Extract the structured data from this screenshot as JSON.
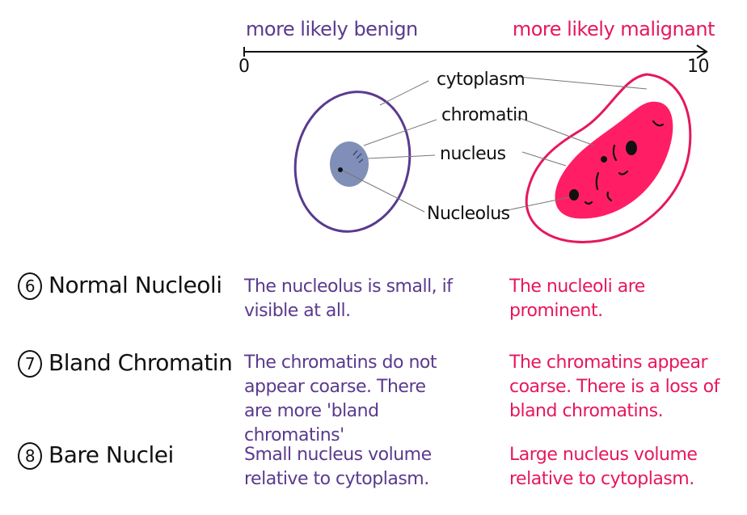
{
  "scale": {
    "left_label": "more likely benign",
    "right_label": "more likely malignant",
    "min": "0",
    "max": "10"
  },
  "parts": {
    "cytoplasm": "cytoplasm",
    "chromatin": "chromatin",
    "nucleus": "nucleus",
    "nucleolus": "Nucleolus"
  },
  "criteria": [
    {
      "number": "6",
      "name": "Normal Nucleoli",
      "benign": "The nucleolus is small, if visible at all.",
      "malignant": "The nucleoli are prominent."
    },
    {
      "number": "7",
      "name": "Bland Chromatin",
      "benign": "The chromatins do not appear coarse. There are more 'bland chromatins'",
      "malignant": "The chromatins appear coarse. There is a loss of bland chromatins."
    },
    {
      "number": "8",
      "name": "Bare Nuclei",
      "benign": "Small nucleus volume relative to cytoplasm.",
      "malignant": "Large nucleus volume relative to cytoplasm."
    }
  ],
  "colors": {
    "benign": "#5a3a8e",
    "malignant": "#e6175e",
    "benign_nucleus": "#7f8fb8",
    "line": "#111111"
  }
}
